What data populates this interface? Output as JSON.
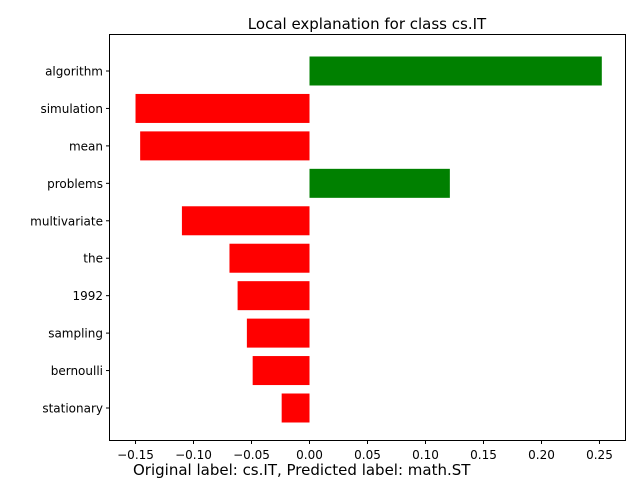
{
  "chart_data": {
    "type": "bar",
    "orientation": "horizontal",
    "title": "Local explanation for class cs.IT",
    "xlabel": "",
    "ylabel": "",
    "categories": [
      "algorithm",
      "simulation",
      "mean",
      "problems",
      "multivariate",
      "the",
      "1992",
      "sampling",
      "bernoulli",
      "stationary"
    ],
    "values": [
      0.252,
      -0.15,
      -0.146,
      0.121,
      -0.11,
      -0.069,
      -0.062,
      -0.054,
      -0.049,
      -0.024
    ],
    "xlim": [
      -0.172,
      0.272
    ],
    "xticks": [
      -0.15,
      -0.1,
      -0.05,
      0.0,
      0.05,
      0.1,
      0.15,
      0.2,
      0.25
    ],
    "xtick_labels": [
      "−0.15",
      "−0.10",
      "−0.05",
      "0.00",
      "0.05",
      "0.10",
      "0.15",
      "0.20",
      "0.25"
    ],
    "positive_color": "#008000",
    "negative_color": "#ff0000",
    "grid": false,
    "legend": "none"
  },
  "caption": "Original label: cs.IT, Predicted label: math.ST"
}
